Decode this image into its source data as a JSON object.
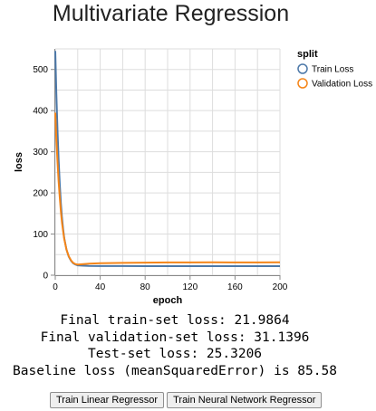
{
  "page": {
    "title": "Multivariate Regression"
  },
  "chart_data": {
    "type": "line",
    "xlabel": "epoch",
    "ylabel": "loss",
    "xlim": [
      0,
      200
    ],
    "ylim": [
      0,
      550
    ],
    "xticks": [
      0,
      40,
      80,
      120,
      160,
      200
    ],
    "yticks": [
      0,
      100,
      200,
      300,
      400,
      500
    ],
    "grid": true,
    "legend": {
      "title": "split",
      "position": "top-right"
    },
    "series": [
      {
        "name": "Train Loss",
        "color": "#4c78a8",
        "x": [
          0,
          1,
          2,
          3,
          4,
          5,
          6,
          7,
          8,
          10,
          12,
          14,
          16,
          18,
          20,
          25,
          30,
          40,
          60,
          80,
          100,
          120,
          140,
          160,
          180,
          200
        ],
        "y": [
          545,
          440,
          350,
          280,
          220,
          175,
          140,
          112,
          90,
          62,
          45,
          35,
          29,
          26,
          24,
          23,
          22.5,
          22.3,
          22.2,
          22.1,
          22.0,
          22.0,
          22.0,
          22.0,
          22.0,
          21.99
        ]
      },
      {
        "name": "Validation Loss",
        "color": "#f58518",
        "x": [
          0,
          1,
          2,
          3,
          4,
          5,
          6,
          7,
          8,
          10,
          12,
          14,
          16,
          18,
          20,
          25,
          30,
          40,
          60,
          80,
          100,
          120,
          140,
          160,
          180,
          200
        ],
        "y": [
          395,
          330,
          275,
          228,
          188,
          155,
          128,
          106,
          88,
          62,
          46,
          36,
          30,
          27,
          26,
          27,
          28,
          29,
          30,
          30.5,
          31,
          31,
          31.2,
          31.1,
          31.1,
          31.14
        ]
      }
    ]
  },
  "results": {
    "train": "Final train-set loss: 21.9864",
    "validation": "Final validation-set loss: 31.1396",
    "test": "Test-set loss: 25.3206",
    "baseline": "Baseline loss (meanSquaredError) is 85.58"
  },
  "buttons": {
    "linear": "Train Linear Regressor",
    "neural": "Train Neural Network Regressor"
  }
}
